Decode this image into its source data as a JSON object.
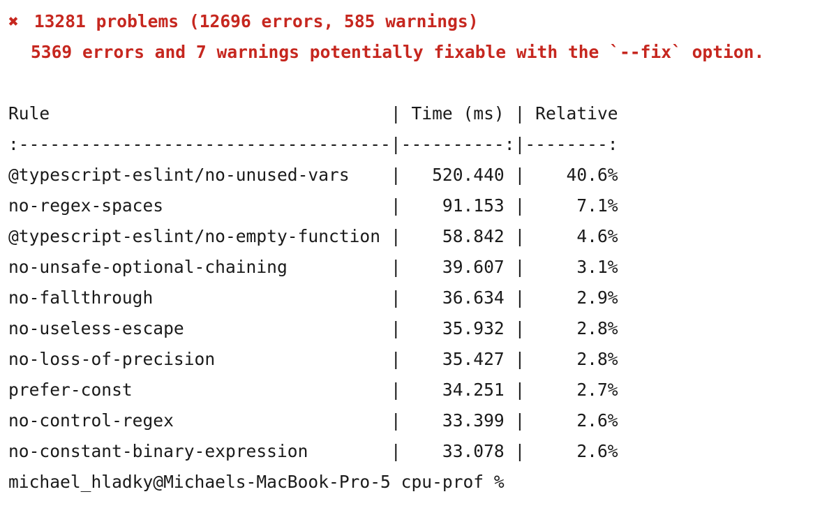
{
  "summary": {
    "icon": "cross-mark-icon",
    "icon_glyph": "✖",
    "problems_text": "13281 problems (12696 errors, 585 warnings)",
    "fixable_text": "5369 errors and 7 warnings potentially fixable with the `--fix` option."
  },
  "colors": {
    "error": "#c6271f",
    "text": "#1a1a1a",
    "background": "#ffffff"
  },
  "table": {
    "header_line": "Rule                                 | Time (ms) | Relative",
    "separator_line": ":------------------------------------|----------:|--------:",
    "rows": [
      {
        "line": "@typescript-eslint/no-unused-vars    |   520.440 |    40.6%"
      },
      {
        "line": "no-regex-spaces                      |    91.153 |     7.1%"
      },
      {
        "line": "@typescript-eslint/no-empty-function |    58.842 |     4.6%"
      },
      {
        "line": "no-unsafe-optional-chaining          |    39.607 |     3.1%"
      },
      {
        "line": "no-fallthrough                       |    36.634 |     2.9%"
      },
      {
        "line": "no-useless-escape                    |    35.932 |     2.8%"
      },
      {
        "line": "no-loss-of-precision                 |    35.427 |     2.8%"
      },
      {
        "line": "prefer-const                         |    34.251 |     2.7%"
      },
      {
        "line": "no-control-regex                     |    33.399 |     2.6%"
      },
      {
        "line": "no-constant-binary-expression        |    33.078 |     2.6%"
      }
    ]
  },
  "prompt": {
    "text": "michael_hladky@Michaels-MacBook-Pro-5 cpu-prof %"
  }
}
